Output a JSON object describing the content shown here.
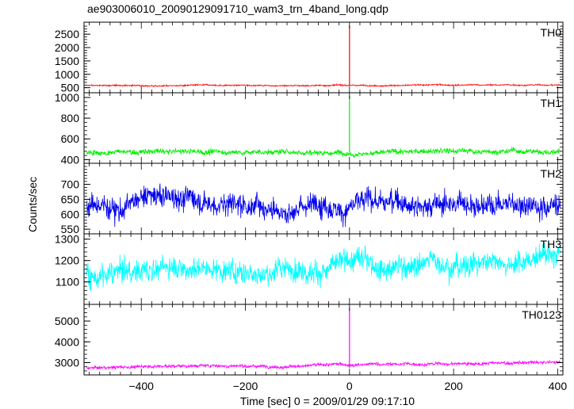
{
  "title": "ae903006010_20090129091710_wam3_trn_4band_long.qdp",
  "chart_data": {
    "type": "line",
    "title": "ae903006010_20090129091710_wam3_trn_4band_long.qdp",
    "xlabel": "Time [sec] 0 = 2009/01/29 09:17:10",
    "ylabel": "Counts/sec",
    "xlim": [
      -510,
      410
    ],
    "xticks": [
      -400,
      -200,
      0,
      200,
      400
    ],
    "xtick_labels": [
      "−400",
      "−200",
      "0",
      "200",
      "400"
    ],
    "grid": false,
    "panels": [
      {
        "name": "TH0",
        "color": "#ff0000",
        "ylim": [
          430,
          2830
        ],
        "yticks": [
          500,
          1000,
          1500,
          2000,
          2500
        ],
        "series": {
          "baseline_start": 580,
          "baseline_end": 600,
          "noise": 20,
          "spike": 2830
        }
      },
      {
        "name": "TH1",
        "color": "#00ee00",
        "ylim": [
          395,
          1015
        ],
        "yticks": [
          400,
          600,
          800,
          1000
        ],
        "series": {
          "baseline_start": 470,
          "baseline_end": 480,
          "noise": 20,
          "spike": 1015
        }
      },
      {
        "name": "TH2",
        "color": "#0000ee",
        "ylim": [
          545,
          760
        ],
        "yticks": [
          550,
          600,
          650,
          700
        ],
        "series": {
          "baseline_start": 630,
          "baseline_end": 650,
          "noise": 30,
          "spike": null
        }
      },
      {
        "name": "TH3",
        "color": "#00ffff",
        "ylim": [
          1010,
          1310
        ],
        "yticks": [
          1100,
          1200,
          1300
        ],
        "series": {
          "baseline_start": 1130,
          "baseline_end": 1220,
          "noise": 40,
          "spike": null
        }
      },
      {
        "name": "TH0123",
        "color": "#ff00ff",
        "ylim": [
          2560,
          5650
        ],
        "yticks": [
          3000,
          4000,
          5000
        ],
        "series": {
          "baseline_start": 2750,
          "baseline_end": 3000,
          "noise": 60,
          "spike": 5650
        }
      }
    ]
  }
}
